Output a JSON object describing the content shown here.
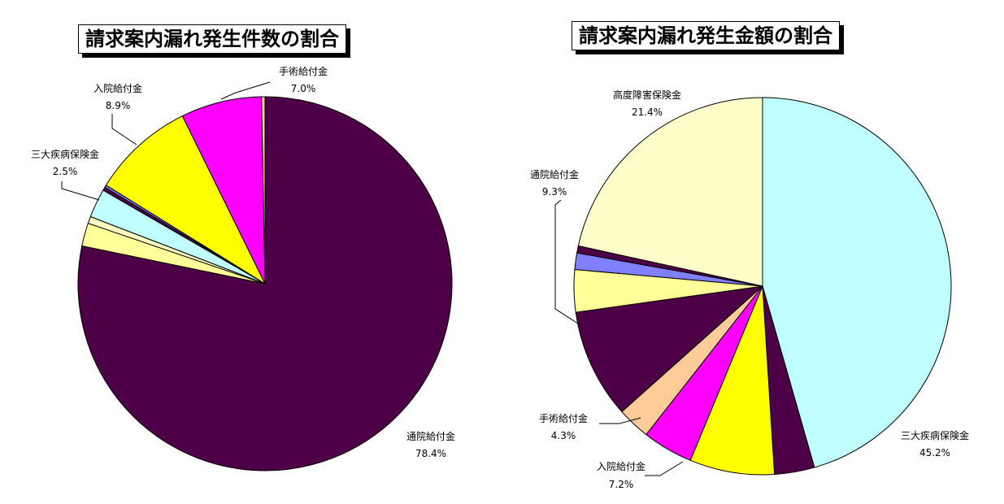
{
  "chart_data": [
    {
      "type": "pie",
      "title": "請求案内漏れ発生件数の割合",
      "slices": [
        {
          "label": "通院給付金",
          "value": 78.4,
          "pct_label": "78.4%",
          "color": "#4d0045"
        },
        {
          "label": "",
          "value": 2.0,
          "pct_label": "",
          "color": "#ffff99"
        },
        {
          "label": "",
          "value": 0.6,
          "pct_label": "",
          "color": "#fffcc0"
        },
        {
          "label": "三大疾病保険金",
          "value": 2.5,
          "pct_label": "2.5%",
          "color": "#c0ffff"
        },
        {
          "label": "",
          "value": 0.3,
          "pct_label": "",
          "color": "#4d0045"
        },
        {
          "label": "",
          "value": 0.2,
          "pct_label": "",
          "color": "#8080ff"
        },
        {
          "label": "入院給付金",
          "value": 8.9,
          "pct_label": "8.9%",
          "color": "#ffff00"
        },
        {
          "label": "手術給付金",
          "value": 7.0,
          "pct_label": "7.0%",
          "color": "#ff00ff"
        },
        {
          "label": "",
          "value": 0.3,
          "pct_label": "",
          "color": "#ffcc99"
        }
      ]
    },
    {
      "type": "pie",
      "title": "請求案内漏れ発生金額の割合",
      "slices": [
        {
          "label": "三大疾病保険金",
          "value": 45.2,
          "pct_label": "45.2%",
          "color": "#c0ffff"
        },
        {
          "label": "",
          "value": 3.4,
          "pct_label": "",
          "color": "#4d0045"
        },
        {
          "label": "入院給付金",
          "value": 7.2,
          "pct_label": "7.2%",
          "color": "#ffff00"
        },
        {
          "label": "手術給付金",
          "value": 4.3,
          "pct_label": "4.3%",
          "color": "#ff00ff"
        },
        {
          "label": "",
          "value": 2.8,
          "pct_label": "",
          "color": "#ffcc99"
        },
        {
          "label": "通院給付金",
          "value": 9.3,
          "pct_label": "9.3%",
          "color": "#4d0045"
        },
        {
          "label": "",
          "value": 3.6,
          "pct_label": "",
          "color": "#ffff99"
        },
        {
          "label": "",
          "value": 1.4,
          "pct_label": "",
          "color": "#8080ff"
        },
        {
          "label": "",
          "value": 0.6,
          "pct_label": "",
          "color": "#4d0045"
        },
        {
          "label": "高度障害保険金",
          "value": 21.4,
          "pct_label": "21.4%",
          "color": "#ffffcc"
        }
      ]
    }
  ]
}
